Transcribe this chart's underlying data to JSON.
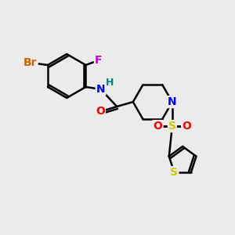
{
  "bg_color": "#ebebeb",
  "bond_color": "#000000",
  "bond_width": 1.8,
  "atom_colors": {
    "Br": "#cc6600",
    "F": "#cc00cc",
    "N": "#0000ff",
    "O": "#ff0000",
    "S_sulfonyl": "#cccc00",
    "S_thio": "#cccc00",
    "H": "#008080",
    "C": "#000000"
  },
  "font_size": 10
}
